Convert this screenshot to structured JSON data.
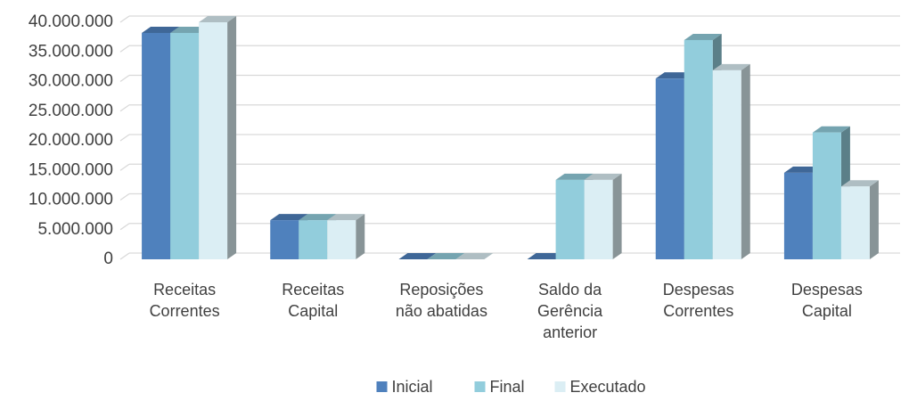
{
  "chart_data": {
    "type": "bar3d",
    "categories": [
      "Receitas\nCorrentes",
      "Receitas\nCapital",
      "Reposições\nnão abatidas",
      "Saldo da\nGerência\nanterior",
      "Despesas\nCorrentes",
      "Despesas\nCapital"
    ],
    "series": [
      {
        "name": "Inicial",
        "color": "#4f81bd",
        "values": [
          38200000,
          6600000,
          0,
          0,
          30500000,
          14600000
        ]
      },
      {
        "name": "Final",
        "color": "#92cddc",
        "values": [
          38200000,
          6600000,
          0,
          13400000,
          37000000,
          21400000
        ]
      },
      {
        "name": "Executado",
        "color": "#dbeef4",
        "values": [
          40000000,
          6600000,
          0,
          13400000,
          31900000,
          12300000
        ]
      }
    ],
    "ylim": [
      0,
      40000000
    ],
    "yticks": [
      0,
      {
        "value": 5000000,
        "label": "5.000.000"
      },
      {
        "value": 10000000,
        "label": "10.000.000"
      },
      {
        "value": 15000000,
        "label": "15.000.000"
      },
      {
        "value": 20000000,
        "label": "20.000.000"
      },
      {
        "value": 25000000,
        "label": "25.000.000"
      },
      {
        "value": 30000000,
        "label": "30.000.000"
      },
      {
        "value": 35000000,
        "label": "35.000.000"
      },
      {
        "value": 40000000,
        "label": "40.000.000"
      }
    ],
    "grid": true,
    "legend": "bottom"
  }
}
